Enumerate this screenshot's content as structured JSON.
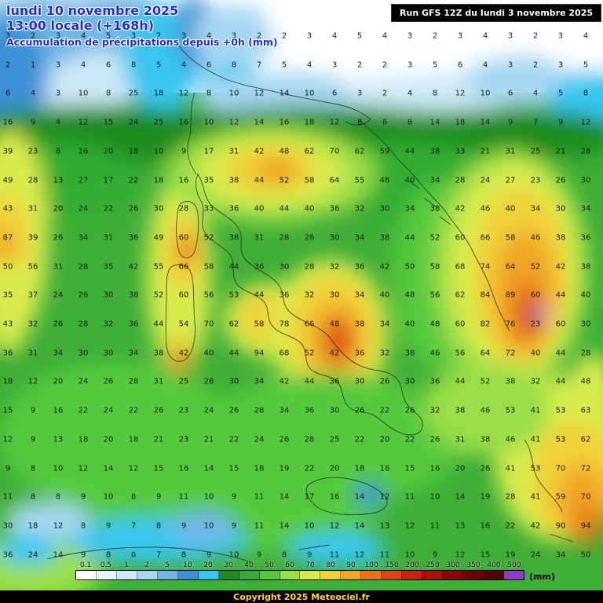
{
  "header": {
    "date": "lundi 10 novembre 2025",
    "time": "13:00 locale (+168h)",
    "subtitle": "Accumulation de précipitations depuis +0h (mm)"
  },
  "run_info": {
    "label": "Run GFS 12Z du lundi 3 novembre 2025"
  },
  "legend": {
    "unit": "(mm)",
    "ticks": [
      "0.1",
      "0.5",
      "1",
      "2",
      "5",
      "10",
      "20",
      "30",
      "40",
      "50",
      "60",
      "70",
      "80",
      "90",
      "100",
      "150",
      "200",
      "250",
      "300",
      "350",
      "400",
      "500"
    ],
    "colors": [
      "#ffffff",
      "#e6f4fc",
      "#cde9f8",
      "#a6d7f2",
      "#6fb6e7",
      "#3e90d6",
      "#38c6f0",
      "#1e8c1e",
      "#33ad33",
      "#55c93c",
      "#9ade46",
      "#d8ec4e",
      "#f2d038",
      "#f0a428",
      "#ea7518",
      "#dc4410",
      "#c6240a",
      "#a81206",
      "#8a0803",
      "#6c0402",
      "#520201",
      "#8a3cc8"
    ]
  },
  "footer": {
    "copyright": "Copyright 2025 Meteociel.fr"
  },
  "map_grid": {
    "values": [
      [
        3,
        2,
        3,
        4,
        5,
        3,
        2,
        3,
        4,
        3,
        2,
        2,
        3,
        4,
        5,
        4,
        3,
        2,
        3,
        4,
        3,
        2,
        3,
        4
      ],
      [
        2,
        1,
        3,
        4,
        6,
        8,
        5,
        4,
        6,
        8,
        7,
        5,
        4,
        3,
        2,
        2,
        3,
        5,
        6,
        4,
        3,
        2,
        3,
        5
      ],
      [
        6,
        4,
        3,
        10,
        8,
        25,
        18,
        12,
        8,
        10,
        12,
        14,
        10,
        6,
        3,
        2,
        4,
        8,
        12,
        10,
        6,
        4,
        5,
        8
      ],
      [
        16,
        9,
        4,
        12,
        15,
        24,
        25,
        16,
        10,
        12,
        14,
        16,
        18,
        12,
        8,
        6,
        8,
        14,
        18,
        14,
        9,
        7,
        9,
        12
      ],
      [
        39,
        23,
        8,
        16,
        20,
        18,
        10,
        9,
        17,
        31,
        42,
        48,
        62,
        70,
        62,
        59,
        44,
        38,
        33,
        21,
        31,
        25,
        21,
        28
      ],
      [
        49,
        28,
        13,
        27,
        17,
        22,
        18,
        16,
        35,
        38,
        44,
        52,
        58,
        64,
        55,
        48,
        40,
        34,
        28,
        24,
        27,
        23,
        26,
        30
      ],
      [
        43,
        31,
        20,
        24,
        22,
        26,
        30,
        28,
        33,
        36,
        40,
        44,
        40,
        36,
        32,
        30,
        34,
        38,
        42,
        46,
        40,
        34,
        30,
        34
      ],
      [
        87,
        39,
        26,
        34,
        31,
        36,
        49,
        60,
        52,
        38,
        31,
        28,
        26,
        30,
        34,
        38,
        44,
        52,
        60,
        66,
        58,
        46,
        38,
        36
      ],
      [
        50,
        56,
        31,
        28,
        35,
        42,
        55,
        66,
        58,
        44,
        36,
        30,
        28,
        32,
        36,
        42,
        50,
        58,
        68,
        74,
        64,
        52,
        42,
        38
      ],
      [
        35,
        37,
        24,
        26,
        30,
        38,
        52,
        60,
        56,
        53,
        44,
        36,
        32,
        30,
        34,
        40,
        48,
        56,
        62,
        84,
        89,
        60,
        44,
        40
      ],
      [
        43,
        32,
        26,
        28,
        32,
        36,
        44,
        54,
        70,
        62,
        58,
        78,
        66,
        48,
        38,
        34,
        40,
        48,
        60,
        82,
        76,
        23,
        60,
        30
      ],
      [
        36,
        31,
        34,
        30,
        30,
        34,
        38,
        42,
        40,
        44,
        94,
        68,
        52,
        42,
        36,
        32,
        38,
        46,
        56,
        64,
        72,
        40,
        44,
        28
      ],
      [
        18,
        12,
        20,
        24,
        26,
        28,
        31,
        25,
        28,
        30,
        34,
        42,
        44,
        36,
        30,
        26,
        30,
        36,
        44,
        52,
        38,
        32,
        44,
        48
      ],
      [
        15,
        9,
        16,
        22,
        24,
        22,
        26,
        23,
        24,
        26,
        28,
        34,
        36,
        30,
        26,
        22,
        26,
        32,
        38,
        46,
        53,
        41,
        53,
        63
      ],
      [
        12,
        9,
        13,
        18,
        20,
        18,
        21,
        23,
        21,
        22,
        24,
        26,
        28,
        25,
        22,
        20,
        22,
        26,
        31,
        38,
        46,
        41,
        53,
        62
      ],
      [
        9,
        8,
        10,
        12,
        14,
        12,
        15,
        16,
        14,
        15,
        18,
        19,
        22,
        20,
        18,
        16,
        15,
        16,
        20,
        26,
        41,
        53,
        70,
        72
      ],
      [
        11,
        8,
        8,
        9,
        10,
        8,
        9,
        11,
        10,
        9,
        11,
        14,
        17,
        16,
        14,
        12,
        11,
        10,
        14,
        19,
        28,
        41,
        59,
        70
      ],
      [
        30,
        18,
        12,
        8,
        9,
        7,
        8,
        9,
        10,
        9,
        11,
        14,
        10,
        12,
        14,
        13,
        12,
        11,
        13,
        16,
        22,
        42,
        90,
        94
      ],
      [
        36,
        24,
        14,
        9,
        8,
        6,
        7,
        8,
        9,
        10,
        9,
        8,
        9,
        11,
        12,
        11,
        10,
        9,
        12,
        15,
        19,
        24,
        34,
        50
      ]
    ]
  }
}
